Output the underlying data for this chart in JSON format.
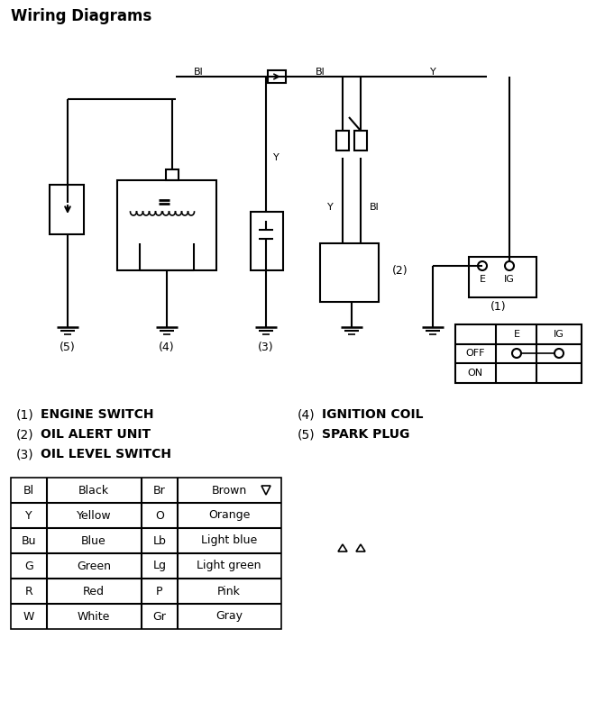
{
  "title": "Wiring Diagrams",
  "bg_color": "#ffffff",
  "line_color": "#000000",
  "legend_items_left": [
    [
      "(1)",
      "ENGINE SWITCH"
    ],
    [
      "(2)",
      "OIL ALERT UNIT"
    ],
    [
      "(3)",
      "OIL LEVEL SWITCH"
    ]
  ],
  "legend_items_right": [
    [
      "(4)",
      "IGNITION COIL"
    ],
    [
      "(5)",
      "SPARK PLUG"
    ]
  ],
  "color_table_left": [
    [
      "Bl",
      "Black"
    ],
    [
      "Y",
      "Yellow"
    ],
    [
      "Bu",
      "Blue"
    ],
    [
      "G",
      "Green"
    ],
    [
      "R",
      "Red"
    ],
    [
      "W",
      "White"
    ]
  ],
  "color_table_right": [
    [
      "Br",
      "Brown"
    ],
    [
      "O",
      "Orange"
    ],
    [
      "Lb",
      "Light blue"
    ],
    [
      "Lg",
      "Light green"
    ],
    [
      "P",
      "Pink"
    ],
    [
      "Gr",
      "Gray"
    ]
  ]
}
